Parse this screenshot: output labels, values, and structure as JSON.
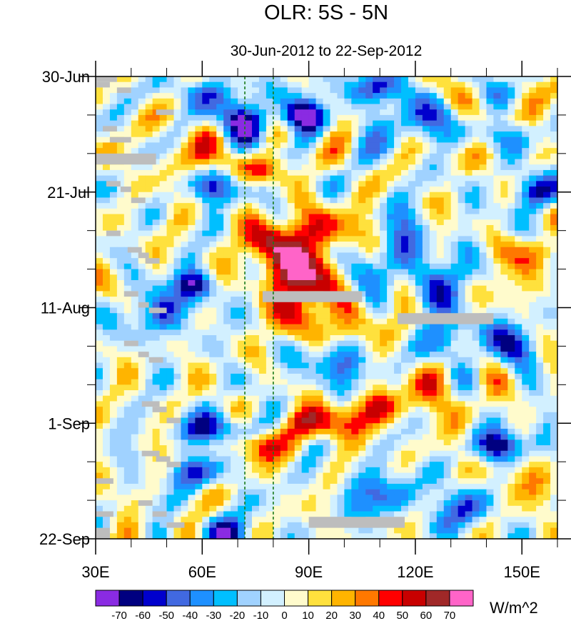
{
  "chart_data": {
    "type": "heatmap",
    "title": "OLR: 5S - 5N",
    "subtitle": "30-Jun-2012 to 22-Sep-2012",
    "x_axis": {
      "range": [
        30,
        160
      ],
      "units": "degrees East longitude",
      "ticks": [
        30,
        60,
        90,
        120,
        150
      ],
      "tick_labels": [
        "30E",
        "60E",
        "90E",
        "120E",
        "150E"
      ],
      "minor_step": 10
    },
    "y_axis": {
      "range_days": [
        0,
        84
      ],
      "direction": "time increases downward",
      "ticks_days": [
        0,
        21,
        42,
        63,
        84
      ],
      "tick_labels": [
        "30-Jun",
        "21-Jul",
        "11-Aug",
        "1-Sep",
        "22-Sep"
      ],
      "minor_step_days": 7
    },
    "reference_lines": [
      {
        "name": "left-dashed-meridian",
        "lon": 72,
        "style": "dashed",
        "color": "#1a7a1a"
      },
      {
        "name": "right-dashed-meridian",
        "lon": 80,
        "style": "dashed",
        "color": "#1a7a1a"
      }
    ],
    "missing_data_color": "#bdbdbd",
    "missing_data_blocks": [
      {
        "lon": [
          30,
          36
        ],
        "day": [
          0,
          1
        ]
      },
      {
        "lon": [
          30,
          34
        ],
        "day": [
          1,
          2
        ]
      },
      {
        "lon": [
          36,
          40
        ],
        "day": [
          2,
          3
        ]
      },
      {
        "lon": [
          47,
          52
        ],
        "day": [
          6,
          7
        ]
      },
      {
        "lon": [
          32,
          36
        ],
        "day": [
          9,
          10
        ]
      },
      {
        "lon": [
          34,
          40
        ],
        "day": [
          11,
          12
        ]
      },
      {
        "lon": [
          30,
          47
        ],
        "day": [
          14,
          16
        ]
      },
      {
        "lon": [
          33,
          37
        ],
        "day": [
          19,
          20
        ]
      },
      {
        "lon": [
          37,
          40
        ],
        "day": [
          20,
          21
        ]
      },
      {
        "lon": [
          40,
          44
        ],
        "day": [
          22,
          23
        ]
      },
      {
        "lon": [
          33,
          37
        ],
        "day": [
          28,
          29
        ]
      },
      {
        "lon": [
          39,
          43
        ],
        "day": [
          31,
          32
        ]
      },
      {
        "lon": [
          42,
          45
        ],
        "day": [
          32,
          33
        ]
      },
      {
        "lon": [
          44,
          48
        ],
        "day": [
          33,
          34
        ]
      },
      {
        "lon": [
          38,
          42
        ],
        "day": [
          39,
          40
        ]
      },
      {
        "lon": [
          42,
          45
        ],
        "day": [
          41,
          42
        ]
      },
      {
        "lon": [
          45,
          50
        ],
        "day": [
          42,
          43
        ]
      },
      {
        "lon": [
          77,
          105
        ],
        "day": [
          39,
          41
        ]
      },
      {
        "lon": [
          115,
          142
        ],
        "day": [
          43,
          45
        ]
      },
      {
        "lon": [
          38,
          42
        ],
        "day": [
          48,
          49
        ]
      },
      {
        "lon": [
          42,
          45
        ],
        "day": [
          50,
          51
        ]
      },
      {
        "lon": [
          45,
          49
        ],
        "day": [
          51,
          52
        ]
      },
      {
        "lon": [
          43,
          48
        ],
        "day": [
          59,
          60
        ]
      },
      {
        "lon": [
          46,
          50
        ],
        "day": [
          60,
          61
        ]
      },
      {
        "lon": [
          50,
          54
        ],
        "day": [
          62,
          63
        ]
      },
      {
        "lon": [
          43,
          48
        ],
        "day": [
          68,
          69
        ]
      },
      {
        "lon": [
          47,
          51
        ],
        "day": [
          69,
          70
        ]
      },
      {
        "lon": [
          50,
          54
        ],
        "day": [
          70,
          71
        ]
      },
      {
        "lon": [
          30,
          35
        ],
        "day": [
          73,
          74
        ]
      },
      {
        "lon": [
          42,
          46
        ],
        "day": [
          77,
          78
        ]
      },
      {
        "lon": [
          46,
          50
        ],
        "day": [
          79,
          80
        ]
      },
      {
        "lon": [
          50,
          55
        ],
        "day": [
          81,
          82
        ]
      },
      {
        "lon": [
          30,
          35
        ],
        "day": [
          79,
          80
        ]
      },
      {
        "lon": [
          30,
          34
        ],
        "day": [
          82,
          84
        ]
      },
      {
        "lon": [
          90,
          117
        ],
        "day": [
          80,
          82
        ]
      }
    ],
    "olr_anomaly_features": [
      {
        "lon": 73,
        "day": 8,
        "value": -60,
        "spread_lon": 6,
        "spread_day": 2.5
      },
      {
        "lon": 88,
        "day": 7,
        "value": -70,
        "spread_lon": 4,
        "spread_day": 2
      },
      {
        "lon": 62,
        "day": 3,
        "value": -40,
        "spread_lon": 6,
        "spread_day": 2
      },
      {
        "lon": 105,
        "day": 2,
        "value": -40,
        "spread_lon": 8,
        "spread_day": 2
      },
      {
        "lon": 118,
        "day": 8,
        "value": -40,
        "spread_lon": 7,
        "spread_day": 3
      },
      {
        "lon": 145,
        "day": 11,
        "value": -35,
        "spread_lon": 8,
        "spread_day": 4
      },
      {
        "lon": 155,
        "day": 21,
        "value": -45,
        "spread_lon": 6,
        "spread_day": 2
      },
      {
        "lon": 66,
        "day": 20,
        "value": -40,
        "spread_lon": 8,
        "spread_day": 2
      },
      {
        "lon": 58,
        "day": 38,
        "value": -65,
        "spread_lon": 4,
        "spread_day": 2
      },
      {
        "lon": 48,
        "day": 43,
        "value": -45,
        "spread_lon": 6,
        "spread_day": 3
      },
      {
        "lon": 115,
        "day": 32,
        "value": -35,
        "spread_lon": 8,
        "spread_day": 5
      },
      {
        "lon": 132,
        "day": 38,
        "value": -45,
        "spread_lon": 6,
        "spread_day": 3
      },
      {
        "lon": 98,
        "day": 52,
        "value": -40,
        "spread_lon": 8,
        "spread_day": 3
      },
      {
        "lon": 128,
        "day": 48,
        "value": -35,
        "spread_lon": 8,
        "spread_day": 4
      },
      {
        "lon": 148,
        "day": 48,
        "value": -40,
        "spread_lon": 6,
        "spread_day": 3
      },
      {
        "lon": 64,
        "day": 64,
        "value": -55,
        "spread_lon": 8,
        "spread_day": 2
      },
      {
        "lon": 145,
        "day": 67,
        "value": -70,
        "spread_lon": 5,
        "spread_day": 2
      },
      {
        "lon": 58,
        "day": 72,
        "value": -45,
        "spread_lon": 6,
        "spread_day": 2
      },
      {
        "lon": 68,
        "day": 83,
        "value": -55,
        "spread_lon": 5,
        "spread_day": 2
      },
      {
        "lon": 110,
        "day": 76,
        "value": -40,
        "spread_lon": 7,
        "spread_day": 3
      },
      {
        "lon": 135,
        "day": 78,
        "value": -35,
        "spread_lon": 8,
        "spread_day": 3
      },
      {
        "lon": 76,
        "day": 17,
        "value": 50,
        "spread_lon": 5,
        "spread_day": 2
      },
      {
        "lon": 56,
        "day": 14,
        "value": 30,
        "spread_lon": 5,
        "spread_day": 3
      },
      {
        "lon": 80,
        "day": 30,
        "value": 55,
        "spread_lon": 6,
        "spread_day": 3
      },
      {
        "lon": 96,
        "day": 28,
        "value": 45,
        "spread_lon": 7,
        "spread_day": 3
      },
      {
        "lon": 86,
        "day": 36,
        "value": 65,
        "spread_lon": 6,
        "spread_day": 3
      },
      {
        "lon": 90,
        "day": 43,
        "value": 55,
        "spread_lon": 5,
        "spread_day": 4
      },
      {
        "lon": 110,
        "day": 46,
        "value": 30,
        "spread_lon": 6,
        "spread_day": 3
      },
      {
        "lon": 94,
        "day": 63,
        "value": 55,
        "spread_lon": 8,
        "spread_day": 2
      },
      {
        "lon": 76,
        "day": 67,
        "value": 50,
        "spread_lon": 5,
        "spread_day": 2
      },
      {
        "lon": 108,
        "day": 60,
        "value": 35,
        "spread_lon": 6,
        "spread_day": 2
      },
      {
        "lon": 140,
        "day": 14,
        "value": 35,
        "spread_lon": 6,
        "spread_day": 2
      },
      {
        "lon": 150,
        "day": 7,
        "value": 30,
        "spread_lon": 6,
        "spread_day": 2
      },
      {
        "lon": 142,
        "day": 38,
        "value": 30,
        "spread_lon": 6,
        "spread_day": 3
      },
      {
        "lon": 155,
        "day": 32,
        "value": 40,
        "spread_lon": 4,
        "spread_day": 2
      },
      {
        "lon": 125,
        "day": 56,
        "value": 30,
        "spread_lon": 8,
        "spread_day": 4
      },
      {
        "lon": 150,
        "day": 74,
        "value": 30,
        "spread_lon": 6,
        "spread_day": 3
      }
    ],
    "colorbar": {
      "units": "W/m^2",
      "levels": [
        -70,
        -60,
        -50,
        -40,
        -30,
        -20,
        -10,
        0,
        10,
        20,
        30,
        40,
        50,
        60,
        70
      ],
      "level_labels": [
        "-70",
        "-60",
        "-50",
        "-40",
        "-30",
        "-20",
        "-10",
        "0",
        "10",
        "20",
        "30",
        "40",
        "50",
        "60",
        "70"
      ],
      "colors": [
        "#8a2be2",
        "#000080",
        "#0000cd",
        "#4169e1",
        "#1e90ff",
        "#00bfff",
        "#a0d2ff",
        "#d2f0ff",
        "#fffbcc",
        "#ffe13d",
        "#ffb400",
        "#ff7800",
        "#ff0000",
        "#c80000",
        "#a02828",
        "#ff64c8"
      ]
    }
  }
}
